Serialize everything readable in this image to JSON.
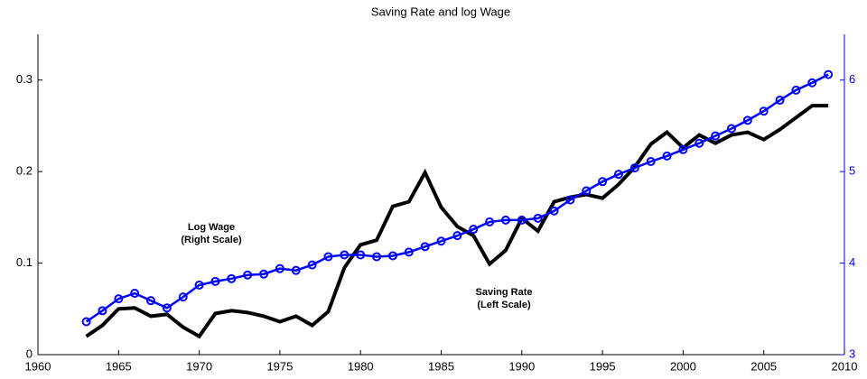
{
  "chart_data": {
    "type": "line",
    "title": "Saving Rate and log Wage",
    "x": [
      1963,
      1964,
      1965,
      1966,
      1967,
      1968,
      1969,
      1970,
      1971,
      1972,
      1973,
      1974,
      1975,
      1976,
      1977,
      1978,
      1979,
      1980,
      1981,
      1982,
      1983,
      1984,
      1985,
      1986,
      1987,
      1988,
      1989,
      1990,
      1991,
      1992,
      1993,
      1994,
      1995,
      1996,
      1997,
      1998,
      1999,
      2000,
      2001,
      2002,
      2003,
      2004,
      2005,
      2006,
      2007,
      2008,
      2009
    ],
    "series": [
      {
        "color": "#000000",
        "values": [
          0.02,
          0.032,
          0.05,
          0.051,
          0.042,
          0.044,
          0.03,
          0.02,
          0.045,
          0.048,
          0.046,
          0.042,
          0.036,
          0.042,
          0.032,
          0.047,
          0.095,
          0.12,
          0.125,
          0.162,
          0.167,
          0.199,
          0.161,
          0.14,
          0.13,
          0.099,
          0.114,
          0.149,
          0.135,
          0.167,
          0.172,
          0.175,
          0.171,
          0.186,
          0.205,
          0.23,
          0.243,
          0.226,
          0.24,
          0.231,
          0.24,
          0.243,
          0.235,
          0.246,
          0.259,
          0.272,
          0.272
        ]
      },
      {
        "color": "#0000ff",
        "axis": "y2",
        "marker": "circle",
        "values": [
          3.36,
          3.48,
          3.61,
          3.67,
          3.59,
          3.51,
          3.63,
          3.76,
          3.8,
          3.83,
          3.87,
          3.88,
          3.94,
          3.92,
          3.98,
          4.07,
          4.09,
          4.09,
          4.07,
          4.08,
          4.12,
          4.18,
          4.24,
          4.3,
          4.37,
          4.45,
          4.47,
          4.47,
          4.49,
          4.57,
          4.69,
          4.79,
          4.89,
          4.97,
          5.04,
          5.11,
          5.17,
          5.24,
          5.31,
          5.39,
          5.47,
          5.56,
          5.66,
          5.78,
          5.89,
          5.97,
          6.06
        ]
      }
    ],
    "annotations": [
      [
        "Log Wage",
        "(Right Scale)"
      ],
      [
        "Saving Rate",
        "(Left Scale)"
      ]
    ],
    "xlim": [
      1960,
      2010
    ],
    "xticks": [
      1960,
      1965,
      1970,
      1975,
      1980,
      1985,
      1990,
      1995,
      2000,
      2005,
      2010
    ],
    "ylim": [
      0,
      0.35
    ],
    "yticks": [
      0,
      0.1,
      0.2,
      0.3
    ],
    "y2lim": [
      3,
      6.5
    ],
    "y2ticks": [
      3,
      4,
      5,
      6
    ],
    "y2color": "#0000ff",
    "grid": false
  }
}
